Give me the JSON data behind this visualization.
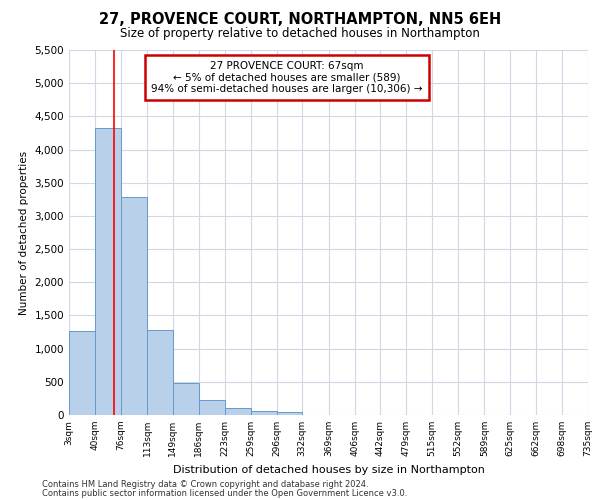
{
  "title": "27, PROVENCE COURT, NORTHAMPTON, NN5 6EH",
  "subtitle": "Size of property relative to detached houses in Northampton",
  "xlabel": "Distribution of detached houses by size in Northampton",
  "ylabel": "Number of detached properties",
  "footnote1": "Contains HM Land Registry data © Crown copyright and database right 2024.",
  "footnote2": "Contains public sector information licensed under the Open Government Licence v3.0.",
  "annotation_line1": "27 PROVENCE COURT: 67sqm",
  "annotation_line2": "← 5% of detached houses are smaller (589)",
  "annotation_line3": "94% of semi-detached houses are larger (10,306) →",
  "bar_color": "#b8d0ea",
  "bar_edge_color": "#6699cc",
  "red_line_x": 67,
  "bin_edges": [
    3,
    40,
    76,
    113,
    149,
    186,
    223,
    259,
    296,
    332,
    369,
    406,
    442,
    479,
    515,
    552,
    589,
    625,
    662,
    698,
    735
  ],
  "bar_heights": [
    1270,
    4330,
    3280,
    1280,
    475,
    230,
    100,
    65,
    50,
    0,
    0,
    0,
    0,
    0,
    0,
    0,
    0,
    0,
    0,
    0
  ],
  "ylim": [
    0,
    5500
  ],
  "yticks": [
    0,
    500,
    1000,
    1500,
    2000,
    2500,
    3000,
    3500,
    4000,
    4500,
    5000,
    5500
  ],
  "tick_labels": [
    "3sqm",
    "40sqm",
    "76sqm",
    "113sqm",
    "149sqm",
    "186sqm",
    "223sqm",
    "259sqm",
    "296sqm",
    "332sqm",
    "369sqm",
    "406sqm",
    "442sqm",
    "479sqm",
    "515sqm",
    "552sqm",
    "589sqm",
    "625sqm",
    "662sqm",
    "698sqm",
    "735sqm"
  ],
  "background_color": "#ffffff",
  "grid_color": "#d0d8e8",
  "annotation_box_color": "#ffffff",
  "annotation_box_edge_color": "#cc0000"
}
